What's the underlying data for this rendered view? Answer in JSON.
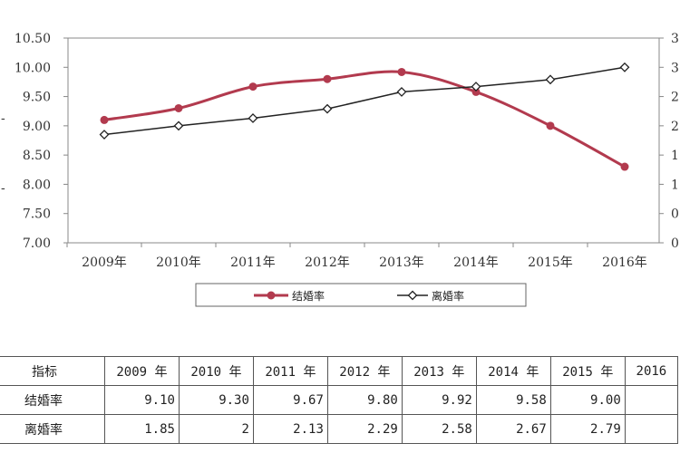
{
  "chart_data": {
    "type": "line",
    "categories": [
      "2009年",
      "2010年",
      "2011年",
      "2012年",
      "2013年",
      "2014年",
      "2015年",
      "2016年"
    ],
    "series": [
      {
        "name": "结婚率",
        "axis": "left",
        "color": "#b23a4e",
        "marker": "circle",
        "values": [
          9.1,
          9.3,
          9.67,
          9.8,
          9.92,
          9.58,
          9.0,
          8.3
        ]
      },
      {
        "name": "离婚率",
        "axis": "right",
        "color": "#222222",
        "marker": "diamond",
        "values": [
          1.85,
          2.0,
          2.13,
          2.29,
          2.58,
          2.67,
          2.79,
          3.0
        ]
      }
    ],
    "y_left": {
      "ylim": [
        7.0,
        10.5
      ],
      "ticks": [
        "7.00",
        "7.50",
        "8.00",
        "8.50",
        "9.00",
        "9.50",
        "10.00",
        "10.50"
      ]
    },
    "y_right": {
      "ylim": [
        0.0,
        3.5
      ],
      "ticks": [
        "0",
        "0",
        "1",
        "1",
        "2",
        "2",
        "3",
        "3"
      ]
    },
    "grid": false,
    "legend_position": "bottom"
  },
  "table": {
    "header": [
      "指标",
      "2009 年",
      "2010 年",
      "2011 年",
      "2012 年",
      "2013 年",
      "2014 年",
      "2015 年",
      "2016"
    ],
    "rows": [
      {
        "label": "结婚率",
        "values": [
          "9.10",
          "9.30",
          "9.67",
          "9.80",
          "9.92",
          "9.58",
          "9.00",
          ""
        ]
      },
      {
        "label": "离婚率",
        "values": [
          "1.85",
          "2",
          "2.13",
          "2.29",
          "2.58",
          "2.67",
          "2.79",
          ""
        ]
      }
    ]
  }
}
